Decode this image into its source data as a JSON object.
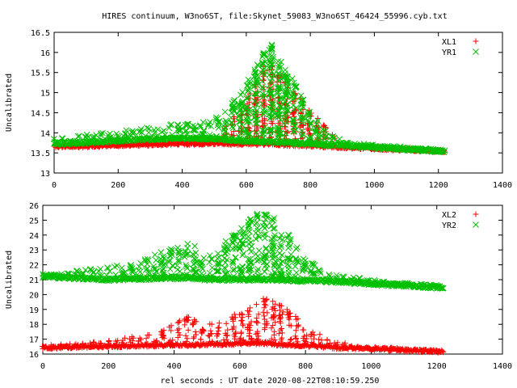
{
  "title": "HIRES continuum, W3no6ST, file:Skynet_59083_W3no6ST_46424_55996.cyb.txt",
  "xlabel": "rel seconds : UT date 2020-08-22T08:10:59.250",
  "colors": {
    "red": "#ff0000",
    "green": "#00c000",
    "axis": "#000000"
  },
  "chart_data": [
    {
      "type": "scatter",
      "ylabel": "Uncalibrated",
      "xlim": [
        0,
        1400
      ],
      "ylim": [
        13,
        16.5
      ],
      "x_ticks": [
        "0",
        "200",
        "400",
        "600",
        "800",
        "1000",
        "1200",
        "1400"
      ],
      "y_ticks": [
        "13",
        "13.5",
        "14",
        "14.5",
        "15",
        "15.5",
        "16",
        "16.5"
      ],
      "legend_position": "top-right",
      "series": [
        {
          "name": "XL1",
          "marker": "plus",
          "color": "#ff0000",
          "x": [
            0,
            100,
            200,
            300,
            400,
            500,
            550,
            600,
            650,
            680,
            700,
            750,
            800,
            900,
            1000,
            1100,
            1220
          ],
          "baseline": [
            13.65,
            13.66,
            13.68,
            13.7,
            13.72,
            13.73,
            13.72,
            13.72,
            13.72,
            13.72,
            13.7,
            13.69,
            13.67,
            13.64,
            13.6,
            13.57,
            13.53
          ],
          "peak": [
            13.7,
            13.72,
            13.74,
            13.76,
            13.78,
            13.8,
            14.3,
            14.8,
            15.7,
            15.8,
            15.5,
            15.1,
            14.6,
            13.7,
            13.65,
            13.6,
            13.55
          ]
        },
        {
          "name": "YR1",
          "marker": "cross",
          "color": "#00c000",
          "x": [
            0,
            100,
            200,
            300,
            400,
            500,
            550,
            600,
            650,
            680,
            700,
            750,
            800,
            900,
            1000,
            1100,
            1220
          ],
          "baseline": [
            13.72,
            13.75,
            13.8,
            13.84,
            13.86,
            13.84,
            13.82,
            13.8,
            13.78,
            13.77,
            13.76,
            13.74,
            13.72,
            13.68,
            13.63,
            13.59,
            13.53
          ],
          "peak": [
            13.85,
            13.95,
            14.05,
            14.15,
            14.25,
            14.35,
            14.7,
            15.2,
            16.0,
            16.2,
            15.9,
            15.3,
            14.5,
            13.8,
            13.7,
            13.65,
            13.58
          ]
        }
      ]
    },
    {
      "type": "scatter",
      "ylabel": "Uncalibrated",
      "xlim": [
        0,
        1400
      ],
      "ylim": [
        16,
        26
      ],
      "x_ticks": [
        "0",
        "200",
        "400",
        "600",
        "800",
        "1000",
        "1200",
        "1400"
      ],
      "y_ticks": [
        "16",
        "17",
        "18",
        "19",
        "20",
        "21",
        "22",
        "23",
        "24",
        "25",
        "26"
      ],
      "legend_position": "top-right",
      "series": [
        {
          "name": "XL2",
          "marker": "plus",
          "color": "#ff0000",
          "x": [
            0,
            100,
            200,
            300,
            400,
            440,
            480,
            500,
            550,
            600,
            650,
            680,
            700,
            750,
            800,
            850,
            900,
            1000,
            1100,
            1220
          ],
          "baseline": [
            16.4,
            16.45,
            16.5,
            16.55,
            16.6,
            16.6,
            16.6,
            16.65,
            16.65,
            16.7,
            16.7,
            16.7,
            16.65,
            16.6,
            16.55,
            16.5,
            16.4,
            16.35,
            16.25,
            16.15
          ],
          "peak": [
            16.6,
            16.7,
            16.9,
            17.3,
            18.0,
            18.7,
            18.0,
            18.0,
            18.2,
            19.0,
            19.6,
            19.8,
            19.7,
            19.0,
            18.0,
            17.2,
            16.8,
            16.5,
            16.4,
            16.2
          ]
        },
        {
          "name": "YR2",
          "marker": "cross",
          "color": "#00c000",
          "x": [
            0,
            100,
            200,
            300,
            400,
            450,
            480,
            500,
            550,
            600,
            650,
            670,
            700,
            750,
            800,
            850,
            900,
            1000,
            1100,
            1220
          ],
          "baseline": [
            21.2,
            21.1,
            21.0,
            21.05,
            21.1,
            21.1,
            21.05,
            21.0,
            21.0,
            21.0,
            21.0,
            21.0,
            21.0,
            20.95,
            20.9,
            20.9,
            20.85,
            20.7,
            20.6,
            20.45
          ],
          "peak": [
            21.4,
            21.6,
            21.9,
            22.4,
            23.2,
            23.6,
            22.8,
            22.5,
            23.5,
            24.5,
            25.4,
            25.6,
            25.2,
            24.0,
            22.6,
            21.6,
            21.3,
            21.0,
            20.8,
            20.6
          ]
        }
      ]
    }
  ]
}
